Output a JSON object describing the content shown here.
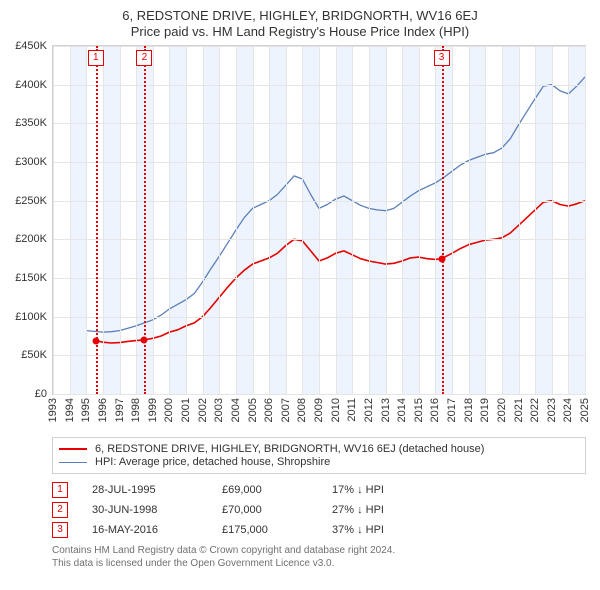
{
  "title": "6, REDSTONE DRIVE, HIGHLEY, BRIDGNORTH, WV16 6EJ",
  "subtitle": "Price paid vs. HM Land Registry's House Price Index (HPI)",
  "chart": {
    "background_color": "#ffffff",
    "grid_color": "#e5e5e5",
    "border_color": "#d0d0d0",
    "band_color": "#eef4fd",
    "y": {
      "min": 0,
      "max": 450000,
      "ticks": [
        0,
        50000,
        100000,
        150000,
        200000,
        250000,
        300000,
        350000,
        400000,
        450000
      ],
      "tick_labels": [
        "£0",
        "£50K",
        "£100K",
        "£150K",
        "£200K",
        "£250K",
        "£300K",
        "£350K",
        "£400K",
        "£450K"
      ],
      "label_fontsize": 11
    },
    "x": {
      "min": 1993,
      "max": 2025,
      "ticks": [
        1993,
        1994,
        1995,
        1996,
        1997,
        1998,
        1999,
        2000,
        2001,
        2002,
        2003,
        2004,
        2005,
        2006,
        2007,
        2008,
        2009,
        2010,
        2011,
        2012,
        2013,
        2014,
        2015,
        2016,
        2017,
        2018,
        2019,
        2020,
        2021,
        2022,
        2023,
        2024,
        2025
      ],
      "band_years": [
        1994,
        1996,
        1998,
        2000,
        2002,
        2004,
        2006,
        2008,
        2010,
        2012,
        2014,
        2016,
        2018,
        2020,
        2022,
        2024
      ],
      "label_fontsize": 11
    },
    "series": [
      {
        "id": "property",
        "label": "6, REDSTONE DRIVE, HIGHLEY, BRIDGNORTH, WV16 6EJ (detached house)",
        "color": "#e60000",
        "line_width": 1.6,
        "points": [
          [
            1995.57,
            69000
          ],
          [
            1996.0,
            67000
          ],
          [
            1996.5,
            66000
          ],
          [
            1997.0,
            66500
          ],
          [
            1997.5,
            68000
          ],
          [
            1998.0,
            69000
          ],
          [
            1998.5,
            70000
          ],
          [
            1999.0,
            72000
          ],
          [
            1999.5,
            75000
          ],
          [
            2000.0,
            80000
          ],
          [
            2000.5,
            83000
          ],
          [
            2001.0,
            88000
          ],
          [
            2001.5,
            92000
          ],
          [
            2002.0,
            100000
          ],
          [
            2002.5,
            112000
          ],
          [
            2003.0,
            125000
          ],
          [
            2003.5,
            138000
          ],
          [
            2004.0,
            150000
          ],
          [
            2004.5,
            160000
          ],
          [
            2005.0,
            168000
          ],
          [
            2005.5,
            172000
          ],
          [
            2006.0,
            176000
          ],
          [
            2006.5,
            182000
          ],
          [
            2007.0,
            192000
          ],
          [
            2007.5,
            200000
          ],
          [
            2008.0,
            198000
          ],
          [
            2008.5,
            185000
          ],
          [
            2009.0,
            172000
          ],
          [
            2009.5,
            176000
          ],
          [
            2010.0,
            182000
          ],
          [
            2010.5,
            185000
          ],
          [
            2011.0,
            180000
          ],
          [
            2011.5,
            175000
          ],
          [
            2012.0,
            172000
          ],
          [
            2012.5,
            170000
          ],
          [
            2013.0,
            168000
          ],
          [
            2013.5,
            169000
          ],
          [
            2014.0,
            172000
          ],
          [
            2014.5,
            176000
          ],
          [
            2015.0,
            177000
          ],
          [
            2015.5,
            175000
          ],
          [
            2016.0,
            174000
          ],
          [
            2016.37,
            175000
          ],
          [
            2017.0,
            182000
          ],
          [
            2017.5,
            188000
          ],
          [
            2018.0,
            193000
          ],
          [
            2018.5,
            196000
          ],
          [
            2019.0,
            199000
          ],
          [
            2019.5,
            200000
          ],
          [
            2020.0,
            202000
          ],
          [
            2020.5,
            208000
          ],
          [
            2021.0,
            218000
          ],
          [
            2021.5,
            228000
          ],
          [
            2022.0,
            238000
          ],
          [
            2022.5,
            248000
          ],
          [
            2023.0,
            250000
          ],
          [
            2023.5,
            245000
          ],
          [
            2024.0,
            243000
          ],
          [
            2024.5,
            246000
          ],
          [
            2025.0,
            250000
          ]
        ],
        "sale_dots": [
          {
            "x": 1995.57,
            "y": 69000
          },
          {
            "x": 1998.5,
            "y": 70000
          },
          {
            "x": 2016.37,
            "y": 175000
          }
        ]
      },
      {
        "id": "hpi",
        "label": "HPI: Average price, detached house, Shropshire",
        "color": "#5b7fb8",
        "line_width": 1.3,
        "points": [
          [
            1995.0,
            82000
          ],
          [
            1995.5,
            81000
          ],
          [
            1996.0,
            80000
          ],
          [
            1996.5,
            80500
          ],
          [
            1997.0,
            82000
          ],
          [
            1997.5,
            85000
          ],
          [
            1998.0,
            88000
          ],
          [
            1998.5,
            92000
          ],
          [
            1999.0,
            96000
          ],
          [
            1999.5,
            102000
          ],
          [
            2000.0,
            110000
          ],
          [
            2000.5,
            116000
          ],
          [
            2001.0,
            122000
          ],
          [
            2001.5,
            130000
          ],
          [
            2002.0,
            145000
          ],
          [
            2002.5,
            162000
          ],
          [
            2003.0,
            178000
          ],
          [
            2003.5,
            195000
          ],
          [
            2004.0,
            212000
          ],
          [
            2004.5,
            228000
          ],
          [
            2005.0,
            240000
          ],
          [
            2005.5,
            245000
          ],
          [
            2006.0,
            250000
          ],
          [
            2006.5,
            258000
          ],
          [
            2007.0,
            270000
          ],
          [
            2007.5,
            282000
          ],
          [
            2008.0,
            278000
          ],
          [
            2008.5,
            258000
          ],
          [
            2009.0,
            240000
          ],
          [
            2009.5,
            245000
          ],
          [
            2010.0,
            252000
          ],
          [
            2010.5,
            256000
          ],
          [
            2011.0,
            250000
          ],
          [
            2011.5,
            244000
          ],
          [
            2012.0,
            240000
          ],
          [
            2012.5,
            238000
          ],
          [
            2013.0,
            237000
          ],
          [
            2013.5,
            240000
          ],
          [
            2014.0,
            248000
          ],
          [
            2014.5,
            256000
          ],
          [
            2015.0,
            263000
          ],
          [
            2015.5,
            268000
          ],
          [
            2016.0,
            273000
          ],
          [
            2016.5,
            280000
          ],
          [
            2017.0,
            288000
          ],
          [
            2017.5,
            296000
          ],
          [
            2018.0,
            302000
          ],
          [
            2018.5,
            306000
          ],
          [
            2019.0,
            310000
          ],
          [
            2019.5,
            312000
          ],
          [
            2020.0,
            318000
          ],
          [
            2020.5,
            330000
          ],
          [
            2021.0,
            348000
          ],
          [
            2021.5,
            365000
          ],
          [
            2022.0,
            382000
          ],
          [
            2022.5,
            398000
          ],
          [
            2023.0,
            400000
          ],
          [
            2023.5,
            392000
          ],
          [
            2024.0,
            388000
          ],
          [
            2024.5,
            398000
          ],
          [
            2025.0,
            410000
          ]
        ]
      }
    ],
    "sale_markers": [
      {
        "n": "1",
        "x": 1995.57
      },
      {
        "n": "2",
        "x": 1998.5
      },
      {
        "n": "3",
        "x": 2016.37
      }
    ],
    "marker_line_color": "#e60000"
  },
  "legend": {
    "items": [
      {
        "color": "#e60000",
        "weight": 2,
        "label": "6, REDSTONE DRIVE, HIGHLEY, BRIDGNORTH, WV16 6EJ (detached house)"
      },
      {
        "color": "#5b7fb8",
        "weight": 1,
        "label": "HPI: Average price, detached house, Shropshire"
      }
    ]
  },
  "sales_table": {
    "rows": [
      {
        "n": "1",
        "date": "28-JUL-1995",
        "price": "£69,000",
        "delta": "17% ↓ HPI"
      },
      {
        "n": "2",
        "date": "30-JUN-1998",
        "price": "£70,000",
        "delta": "27% ↓ HPI"
      },
      {
        "n": "3",
        "date": "16-MAY-2016",
        "price": "£175,000",
        "delta": "37% ↓ HPI"
      }
    ]
  },
  "footer": {
    "line1": "Contains HM Land Registry data © Crown copyright and database right 2024.",
    "line2": "This data is licensed under the Open Government Licence v3.0."
  }
}
